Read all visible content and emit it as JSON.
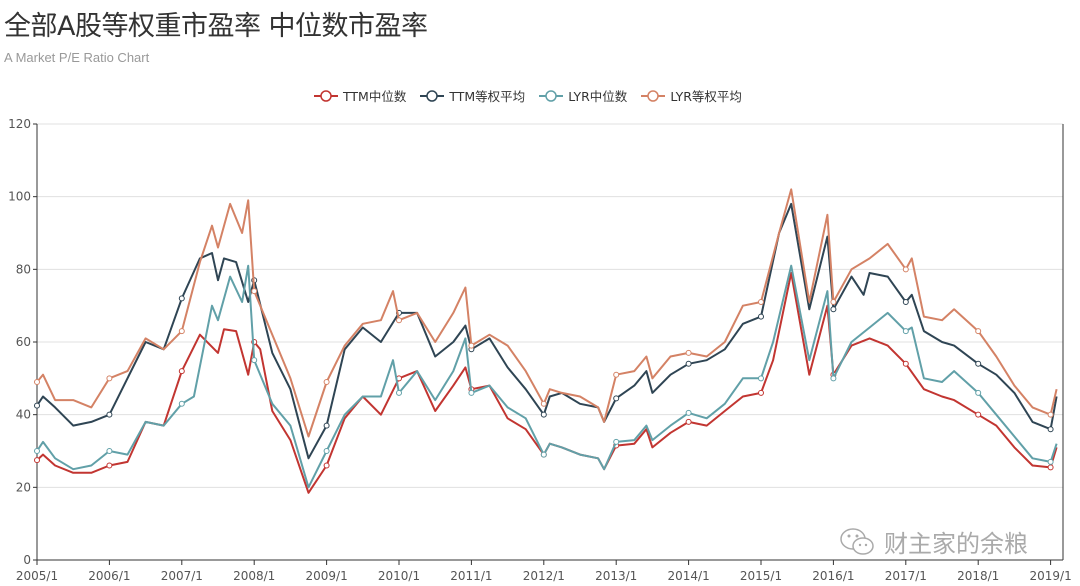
{
  "chart_data": {
    "type": "line",
    "title": "全部A股等权重市盈率 中位数市盈率",
    "subtitle": "A Market P/E Ratio Chart",
    "ylim": [
      0,
      120
    ],
    "yticks": [
      0,
      20,
      40,
      60,
      80,
      100,
      120
    ],
    "xticks": [
      "2005/1",
      "2006/1",
      "2007/1",
      "2008/1",
      "2009/1",
      "2010/1",
      "2011/1",
      "2012/1",
      "2013/1",
      "2014/1",
      "2015/1",
      "2016/1",
      "2017/1",
      "2018/1",
      "2019/1"
    ],
    "xrange": [
      "2005/1",
      "2019/2"
    ],
    "grid": "horizontal",
    "legend_position": "top-center",
    "series": [
      {
        "name": "TTM中位数",
        "color": "#c23531",
        "points": [
          [
            "2005/1",
            27.5
          ],
          [
            "2005/2",
            29
          ],
          [
            "2005/4",
            26
          ],
          [
            "2005/7",
            24
          ],
          [
            "2005/10",
            24
          ],
          [
            "2006/1",
            26
          ],
          [
            "2006/4",
            27
          ],
          [
            "2006/7",
            38
          ],
          [
            "2006/10",
            37
          ],
          [
            "2007/1",
            52
          ],
          [
            "2007/4",
            62
          ],
          [
            "2007/7",
            57
          ],
          [
            "2007/8",
            63.5
          ],
          [
            "2007/10",
            63
          ],
          [
            "2007/12",
            51
          ],
          [
            "2008/1",
            60
          ],
          [
            "2008/2",
            58
          ],
          [
            "2008/4",
            41
          ],
          [
            "2008/7",
            33
          ],
          [
            "2008/10",
            18.5
          ],
          [
            "2009/1",
            26
          ],
          [
            "2009/4",
            39
          ],
          [
            "2009/7",
            45
          ],
          [
            "2009/10",
            40
          ],
          [
            "2010/1",
            50
          ],
          [
            "2010/4",
            52
          ],
          [
            "2010/7",
            41
          ],
          [
            "2010/10",
            48
          ],
          [
            "2010/12",
            53
          ],
          [
            "2011/1",
            47
          ],
          [
            "2011/4",
            48
          ],
          [
            "2011/7",
            39
          ],
          [
            "2011/10",
            36
          ],
          [
            "2012/1",
            29
          ],
          [
            "2012/2",
            32
          ],
          [
            "2012/4",
            31
          ],
          [
            "2012/7",
            29
          ],
          [
            "2012/10",
            28
          ],
          [
            "2012/11",
            25
          ],
          [
            "2013/1",
            31.5
          ],
          [
            "2013/4",
            32
          ],
          [
            "2013/6",
            36
          ],
          [
            "2013/7",
            31
          ],
          [
            "2013/10",
            35
          ],
          [
            "2014/1",
            38
          ],
          [
            "2014/4",
            37
          ],
          [
            "2014/7",
            41
          ],
          [
            "2014/10",
            45
          ],
          [
            "2015/1",
            46
          ],
          [
            "2015/3",
            55
          ],
          [
            "2015/6",
            79
          ],
          [
            "2015/9",
            51
          ],
          [
            "2015/12",
            70
          ],
          [
            "2016/1",
            51
          ],
          [
            "2016/4",
            59
          ],
          [
            "2016/7",
            61
          ],
          [
            "2016/10",
            59
          ],
          [
            "2017/1",
            54
          ],
          [
            "2017/4",
            47
          ],
          [
            "2017/7",
            45
          ],
          [
            "2017/9",
            44
          ],
          [
            "2018/1",
            40
          ],
          [
            "2018/4",
            37
          ],
          [
            "2018/7",
            31
          ],
          [
            "2018/10",
            26
          ],
          [
            "2019/1",
            25.5
          ],
          [
            "2019/2",
            31
          ]
        ]
      },
      {
        "name": "TTM等权平均",
        "color": "#2f4554",
        "points": [
          [
            "2005/1",
            42.5
          ],
          [
            "2005/2",
            45
          ],
          [
            "2005/4",
            42
          ],
          [
            "2005/7",
            37
          ],
          [
            "2005/10",
            38
          ],
          [
            "2006/1",
            40
          ],
          [
            "2006/4",
            50
          ],
          [
            "2006/7",
            60
          ],
          [
            "2006/10",
            58
          ],
          [
            "2007/1",
            72
          ],
          [
            "2007/4",
            83
          ],
          [
            "2007/6",
            84.5
          ],
          [
            "2007/7",
            77
          ],
          [
            "2007/8",
            83
          ],
          [
            "2007/10",
            82
          ],
          [
            "2007/12",
            71
          ],
          [
            "2008/1",
            77
          ],
          [
            "2008/4",
            57
          ],
          [
            "2008/7",
            47
          ],
          [
            "2008/10",
            28
          ],
          [
            "2009/1",
            37
          ],
          [
            "2009/4",
            58
          ],
          [
            "2009/7",
            64
          ],
          [
            "2009/10",
            60
          ],
          [
            "2010/1",
            68
          ],
          [
            "2010/4",
            68
          ],
          [
            "2010/7",
            56
          ],
          [
            "2010/10",
            60
          ],
          [
            "2010/12",
            64.5
          ],
          [
            "2011/1",
            58
          ],
          [
            "2011/4",
            61
          ],
          [
            "2011/7",
            53
          ],
          [
            "2011/10",
            47
          ],
          [
            "2012/1",
            40
          ],
          [
            "2012/2",
            45
          ],
          [
            "2012/4",
            46
          ],
          [
            "2012/7",
            43
          ],
          [
            "2012/10",
            42
          ],
          [
            "2012/11",
            38
          ],
          [
            "2013/1",
            44.5
          ],
          [
            "2013/4",
            48
          ],
          [
            "2013/6",
            52
          ],
          [
            "2013/7",
            46
          ],
          [
            "2013/10",
            51
          ],
          [
            "2014/1",
            54
          ],
          [
            "2014/4",
            55
          ],
          [
            "2014/7",
            58
          ],
          [
            "2014/10",
            65
          ],
          [
            "2015/1",
            67
          ],
          [
            "2015/4",
            90
          ],
          [
            "2015/6",
            98
          ],
          [
            "2015/9",
            69
          ],
          [
            "2015/12",
            89
          ],
          [
            "2016/1",
            69
          ],
          [
            "2016/4",
            78
          ],
          [
            "2016/6",
            73
          ],
          [
            "2016/7",
            79
          ],
          [
            "2016/10",
            78
          ],
          [
            "2017/1",
            71
          ],
          [
            "2017/2",
            73
          ],
          [
            "2017/4",
            63
          ],
          [
            "2017/7",
            60
          ],
          [
            "2017/9",
            59
          ],
          [
            "2018/1",
            54
          ],
          [
            "2018/4",
            51
          ],
          [
            "2018/7",
            46
          ],
          [
            "2018/10",
            38
          ],
          [
            "2019/1",
            36
          ],
          [
            "2019/2",
            45
          ]
        ]
      },
      {
        "name": "LYR中位数",
        "color": "#61a0a8",
        "points": [
          [
            "2005/1",
            30
          ],
          [
            "2005/2",
            32.5
          ],
          [
            "2005/4",
            28
          ],
          [
            "2005/7",
            25
          ],
          [
            "2005/10",
            26
          ],
          [
            "2006/1",
            30
          ],
          [
            "2006/4",
            29
          ],
          [
            "2006/7",
            38
          ],
          [
            "2006/10",
            37
          ],
          [
            "2007/1",
            43
          ],
          [
            "2007/3",
            45
          ],
          [
            "2007/6",
            70
          ],
          [
            "2007/7",
            66
          ],
          [
            "2007/9",
            78
          ],
          [
            "2007/11",
            71
          ],
          [
            "2007/12",
            81
          ],
          [
            "2008/1",
            55
          ],
          [
            "2008/4",
            43
          ],
          [
            "2008/7",
            37
          ],
          [
            "2008/10",
            20
          ],
          [
            "2009/1",
            30
          ],
          [
            "2009/4",
            40
          ],
          [
            "2009/7",
            45
          ],
          [
            "2009/10",
            45
          ],
          [
            "2009/12",
            55
          ],
          [
            "2010/1",
            46
          ],
          [
            "2010/4",
            52
          ],
          [
            "2010/7",
            44
          ],
          [
            "2010/10",
            52
          ],
          [
            "2010/12",
            61
          ],
          [
            "2011/1",
            46
          ],
          [
            "2011/4",
            48
          ],
          [
            "2011/7",
            42
          ],
          [
            "2011/10",
            39
          ],
          [
            "2012/1",
            29
          ],
          [
            "2012/2",
            32
          ],
          [
            "2012/4",
            31
          ],
          [
            "2012/7",
            29
          ],
          [
            "2012/10",
            28
          ],
          [
            "2012/11",
            25
          ],
          [
            "2013/1",
            32.5
          ],
          [
            "2013/4",
            33
          ],
          [
            "2013/6",
            37
          ],
          [
            "2013/7",
            33
          ],
          [
            "2013/10",
            37
          ],
          [
            "2014/1",
            40.5
          ],
          [
            "2014/4",
            39
          ],
          [
            "2014/7",
            43
          ],
          [
            "2014/10",
            50
          ],
          [
            "2015/1",
            50
          ],
          [
            "2015/3",
            60
          ],
          [
            "2015/6",
            81
          ],
          [
            "2015/9",
            55
          ],
          [
            "2015/12",
            74
          ],
          [
            "2016/1",
            50
          ],
          [
            "2016/4",
            60
          ],
          [
            "2016/7",
            64
          ],
          [
            "2016/10",
            68
          ],
          [
            "2017/1",
            63
          ],
          [
            "2017/2",
            64
          ],
          [
            "2017/4",
            50
          ],
          [
            "2017/7",
            49
          ],
          [
            "2017/9",
            52
          ],
          [
            "2018/1",
            46
          ],
          [
            "2018/4",
            40
          ],
          [
            "2018/7",
            34
          ],
          [
            "2018/10",
            28
          ],
          [
            "2019/1",
            27
          ],
          [
            "2019/2",
            32
          ]
        ]
      },
      {
        "name": "LYR等权平均",
        "color": "#d48265",
        "points": [
          [
            "2005/1",
            49
          ],
          [
            "2005/2",
            51
          ],
          [
            "2005/4",
            44
          ],
          [
            "2005/7",
            44
          ],
          [
            "2005/10",
            42
          ],
          [
            "2006/1",
            50
          ],
          [
            "2006/4",
            52
          ],
          [
            "2006/7",
            61
          ],
          [
            "2006/10",
            58
          ],
          [
            "2007/1",
            63
          ],
          [
            "2007/4",
            82
          ],
          [
            "2007/6",
            92
          ],
          [
            "2007/7",
            86
          ],
          [
            "2007/9",
            98
          ],
          [
            "2007/11",
            90
          ],
          [
            "2007/12",
            99
          ],
          [
            "2008/1",
            74
          ],
          [
            "2008/4",
            62
          ],
          [
            "2008/7",
            50
          ],
          [
            "2008/10",
            34
          ],
          [
            "2009/1",
            49
          ],
          [
            "2009/4",
            59
          ],
          [
            "2009/7",
            65
          ],
          [
            "2009/10",
            66
          ],
          [
            "2009/12",
            74
          ],
          [
            "2010/1",
            66
          ],
          [
            "2010/4",
            68
          ],
          [
            "2010/7",
            60
          ],
          [
            "2010/10",
            68
          ],
          [
            "2010/12",
            75
          ],
          [
            "2011/1",
            59
          ],
          [
            "2011/4",
            62
          ],
          [
            "2011/7",
            59
          ],
          [
            "2011/10",
            52
          ],
          [
            "2012/1",
            43
          ],
          [
            "2012/2",
            47
          ],
          [
            "2012/4",
            46
          ],
          [
            "2012/7",
            45
          ],
          [
            "2012/10",
            42
          ],
          [
            "2012/11",
            38
          ],
          [
            "2013/1",
            51
          ],
          [
            "2013/4",
            52
          ],
          [
            "2013/6",
            56
          ],
          [
            "2013/7",
            50
          ],
          [
            "2013/10",
            56
          ],
          [
            "2014/1",
            57
          ],
          [
            "2014/4",
            56
          ],
          [
            "2014/7",
            60
          ],
          [
            "2014/10",
            70
          ],
          [
            "2015/1",
            71
          ],
          [
            "2015/4",
            90
          ],
          [
            "2015/6",
            102
          ],
          [
            "2015/9",
            71
          ],
          [
            "2015/12",
            95
          ],
          [
            "2016/1",
            71
          ],
          [
            "2016/4",
            80
          ],
          [
            "2016/7",
            83
          ],
          [
            "2016/10",
            87
          ],
          [
            "2017/1",
            80
          ],
          [
            "2017/2",
            83
          ],
          [
            "2017/4",
            67
          ],
          [
            "2017/7",
            66
          ],
          [
            "2017/9",
            69
          ],
          [
            "2018/1",
            63
          ],
          [
            "2018/4",
            56
          ],
          [
            "2018/7",
            48
          ],
          [
            "2018/10",
            42
          ],
          [
            "2019/1",
            40
          ],
          [
            "2019/2",
            47
          ]
        ]
      }
    ]
  },
  "watermark": "财主家的余粮",
  "watermark_icon": "wechat-icon"
}
